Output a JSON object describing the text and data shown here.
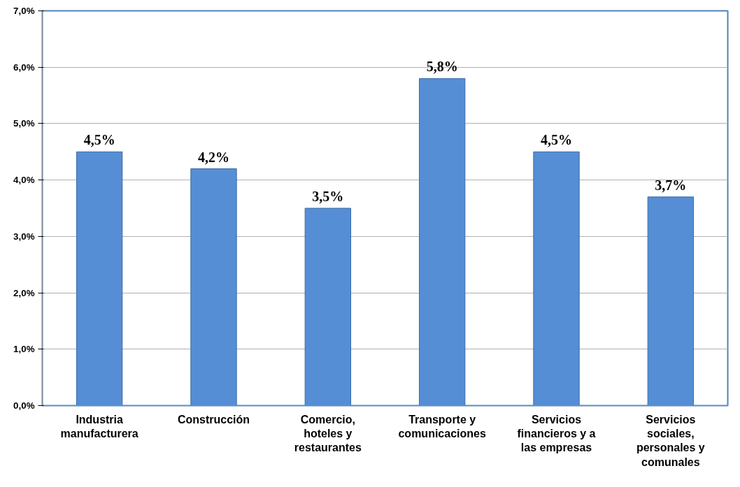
{
  "chart_data": {
    "type": "bar",
    "categories": [
      "Industria manufacturera",
      "Construcción",
      "Comercio, hoteles y restaurantes",
      "Transporte y comunicaciones",
      "Servicios financieros y a las empresas",
      "Servicios sociales, personales y comunales"
    ],
    "values": [
      4.5,
      4.2,
      3.5,
      5.8,
      4.5,
      3.7
    ],
    "value_labels": [
      "4,5%",
      "4,2%",
      "3,5%",
      "5,8%",
      "4,5%",
      "3,7%"
    ],
    "color": "#558ed5",
    "ylim": [
      0,
      7
    ],
    "yticks": [
      {
        "value": 0,
        "label": "0,0%"
      },
      {
        "value": 1,
        "label": "1,0%"
      },
      {
        "value": 2,
        "label": "2,0%"
      },
      {
        "value": 3,
        "label": "3,0%"
      },
      {
        "value": 4,
        "label": "4,0%"
      },
      {
        "value": 5,
        "label": "5,0%"
      },
      {
        "value": 6,
        "label": "6,0%"
      },
      {
        "value": 7,
        "label": "7,0%"
      }
    ],
    "grid": "y"
  }
}
